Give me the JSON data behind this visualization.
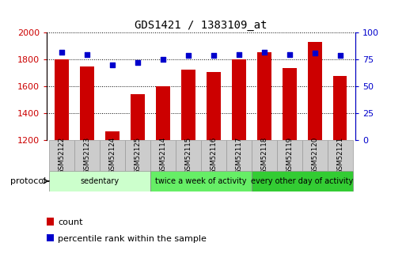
{
  "title": "GDS1421 / 1383109_at",
  "samples": [
    "GSM52122",
    "GSM52123",
    "GSM52124",
    "GSM52125",
    "GSM52114",
    "GSM52115",
    "GSM52116",
    "GSM52117",
    "GSM52118",
    "GSM52119",
    "GSM52120",
    "GSM52121"
  ],
  "counts": [
    1800,
    1750,
    1265,
    1545,
    1605,
    1725,
    1710,
    1800,
    1855,
    1740,
    1930,
    1680
  ],
  "percentiles": [
    82,
    80,
    70,
    72,
    75,
    79,
    79,
    80,
    82,
    80,
    81,
    79
  ],
  "ylim_left": [
    1200,
    2000
  ],
  "ylim_right": [
    0,
    100
  ],
  "yticks_left": [
    1200,
    1400,
    1600,
    1800,
    2000
  ],
  "yticks_right": [
    0,
    25,
    50,
    75,
    100
  ],
  "bar_color": "#cc0000",
  "dot_color": "#0000cc",
  "tick_bg_color": "#cccccc",
  "tick_border_color": "#999999",
  "groups": [
    {
      "label": "sedentary",
      "start": 0,
      "end": 4,
      "color": "#ccffcc"
    },
    {
      "label": "twice a week of activity",
      "start": 4,
      "end": 8,
      "color": "#66ee66"
    },
    {
      "label": "every other day of activity",
      "start": 8,
      "end": 12,
      "color": "#33cc33"
    }
  ],
  "protocol_label": "protocol",
  "legend_count_label": "count",
  "legend_pct_label": "percentile rank within the sample"
}
